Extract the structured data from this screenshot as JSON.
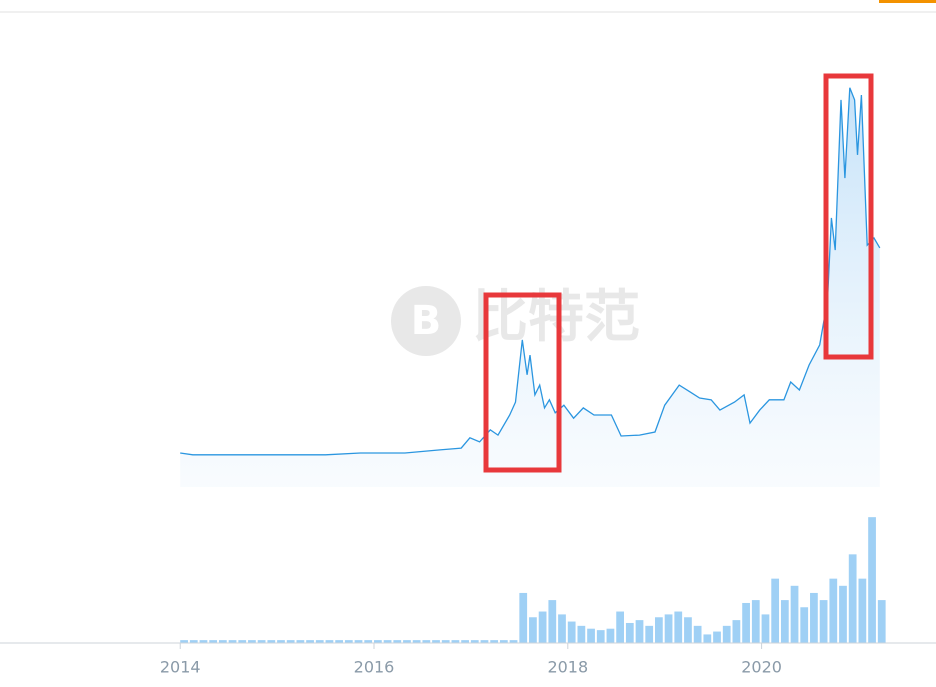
{
  "chart_data": [
    {
      "type": "area",
      "watermark": "比特范",
      "color": "#2b96e0",
      "x": [
        2014.0,
        2014.13,
        2015.5,
        2015.86,
        2016.32,
        2016.68,
        2016.9,
        2016.99,
        2017.09,
        2017.2,
        2017.28,
        2017.4,
        2017.46,
        2017.53,
        2017.58,
        2017.61,
        2017.66,
        2017.71,
        2017.76,
        2017.81,
        2017.87,
        2017.96,
        2018.06,
        2018.16,
        2018.27,
        2018.45,
        2018.55,
        2018.74,
        2018.9,
        2019.0,
        2019.15,
        2019.26,
        2019.36,
        2019.48,
        2019.57,
        2019.72,
        2019.82,
        2019.88,
        2019.98,
        2020.08,
        2020.23,
        2020.3,
        2020.39,
        2020.49,
        2020.6,
        2020.68,
        2020.72,
        2020.76,
        2020.82,
        2020.86,
        2020.91,
        2020.96,
        2020.99,
        2021.03,
        2021.09,
        2021.16,
        2021.22
      ],
      "values": [
        7.6,
        7.2,
        7.2,
        7.6,
        7.6,
        8.3,
        8.7,
        11.0,
        10.1,
        12.8,
        11.6,
        16.1,
        19.0,
        32.9,
        25.1,
        29.5,
        20.6,
        22.8,
        17.7,
        19.5,
        16.6,
        18.3,
        15.4,
        17.7,
        16.1,
        16.1,
        11.4,
        11.6,
        12.3,
        18.3,
        22.8,
        21.3,
        19.9,
        19.5,
        17.2,
        19.0,
        20.6,
        14.3,
        17.2,
        19.5,
        19.5,
        23.5,
        21.7,
        27.3,
        31.8,
        41.8,
        60.2,
        53.0,
        86.6,
        69.1,
        89.3,
        86.6,
        74.3,
        87.7,
        54.1,
        55.7,
        53.5
      ],
      "xlim": [
        2012.14,
        2021.8
      ],
      "ylim": [
        0,
        100
      ],
      "xticks": [
        2014,
        2016,
        2018,
        2020
      ]
    },
    {
      "type": "bar",
      "color": "#9fd0f5",
      "x": [
        2014.0,
        2014.1,
        2014.2,
        2014.3,
        2014.4,
        2014.5,
        2014.6,
        2014.7,
        2014.8,
        2014.9,
        2015.0,
        2015.1,
        2015.2,
        2015.3,
        2015.4,
        2015.5,
        2015.6,
        2015.7,
        2015.8,
        2015.9,
        2016.0,
        2016.1,
        2016.2,
        2016.3,
        2016.4,
        2016.5,
        2016.6,
        2016.7,
        2016.8,
        2016.9,
        2017.0,
        2017.1,
        2017.2,
        2017.3,
        2017.4,
        2017.5,
        2017.6,
        2017.7,
        2017.8,
        2017.9,
        2018.0,
        2018.1,
        2018.2,
        2018.3,
        2018.4,
        2018.5,
        2018.6,
        2018.7,
        2018.8,
        2018.9,
        2019.0,
        2019.1,
        2019.2,
        2019.3,
        2019.4,
        2019.5,
        2019.6,
        2019.7,
        2019.8,
        2019.9,
        2020.0,
        2020.1,
        2020.2,
        2020.3,
        2020.4,
        2020.5,
        2020.6,
        2020.7,
        2020.8,
        2020.9,
        2021.0,
        2021.1,
        2021.2
      ],
      "values": [
        2,
        2,
        2,
        2,
        2,
        2,
        2,
        2,
        2,
        2,
        2,
        2,
        2,
        2,
        2,
        2,
        2,
        2,
        2,
        2,
        2,
        2,
        2,
        2,
        2,
        2,
        2,
        2,
        2,
        2,
        2,
        2,
        2,
        2,
        2,
        35,
        18,
        22,
        30,
        20,
        15,
        12,
        10,
        9,
        10,
        22,
        14,
        16,
        12,
        18,
        20,
        22,
        18,
        12,
        6,
        8,
        12,
        16,
        28,
        30,
        20,
        45,
        30,
        40,
        25,
        35,
        30,
        45,
        40,
        62,
        45,
        88,
        30
      ],
      "xlim": [
        2012.14,
        2021.8
      ],
      "ylim": [
        0,
        100
      ]
    }
  ]
}
